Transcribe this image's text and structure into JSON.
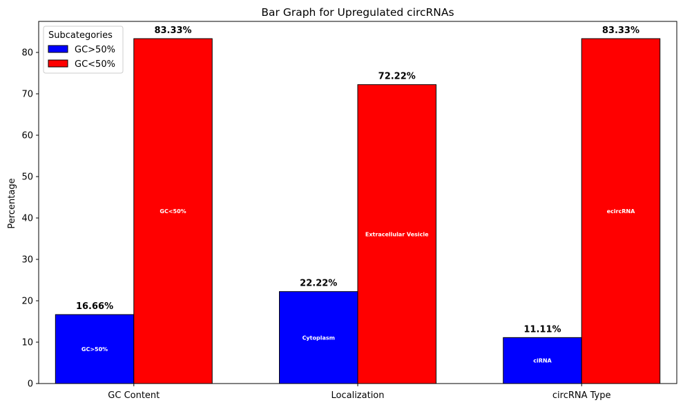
{
  "chart_data": {
    "type": "bar",
    "title": "Bar Graph for Upregulated circRNAs",
    "xlabel": "",
    "ylabel": "Percentage",
    "ylim": [
      0,
      87.5
    ],
    "yticks": [
      0,
      10,
      20,
      30,
      40,
      50,
      60,
      70,
      80
    ],
    "categories": [
      "GC Content",
      "Localization",
      "circRNA Type"
    ],
    "series": [
      {
        "name": "GC>50%",
        "color": "#0000ff",
        "values": [
          16.66,
          22.22,
          11.11
        ],
        "value_labels": [
          "16.66%",
          "22.22%",
          "11.11%"
        ],
        "inner_labels": [
          "GC>50%",
          "Cytoplasm",
          "ciRNA"
        ]
      },
      {
        "name": "GC<50%",
        "color": "#ff0000",
        "values": [
          83.33,
          72.22,
          83.33
        ],
        "value_labels": [
          "83.33%",
          "72.22%",
          "83.33%"
        ],
        "inner_labels": [
          "GC<50%",
          "Extracellular Vesicle",
          "ecircRNA"
        ]
      }
    ],
    "legend": {
      "title": "Subcategories",
      "placement": "top-left"
    },
    "grid": false
  }
}
